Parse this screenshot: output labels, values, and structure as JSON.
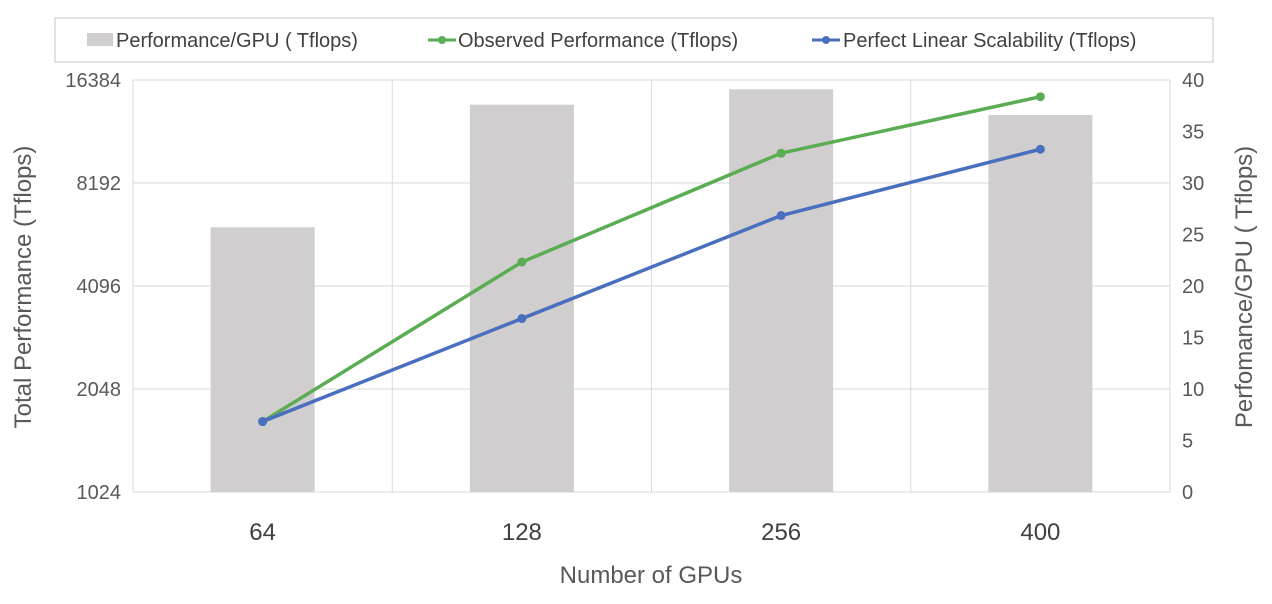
{
  "chart_data": {
    "type": "bar+line",
    "categories": [
      "64",
      "128",
      "256",
      "400"
    ],
    "xlabel": "Number of GPUs",
    "ylabel_left": "Total Performance (Tflops)",
    "ylabel_right": "Perfomance/GPU ( Tflops)",
    "left_axis": {
      "scale": "log2",
      "ticks": [
        1024,
        2048,
        4096,
        8192,
        16384
      ],
      "ylim": [
        1024,
        16384
      ]
    },
    "right_axis": {
      "scale": "linear",
      "ticks": [
        0,
        5,
        10,
        15,
        20,
        25,
        30,
        35,
        40
      ],
      "ylim": [
        0,
        40
      ]
    },
    "series": [
      {
        "name": "Performance/GPU ( Tflops)",
        "type": "bar",
        "axis": "right",
        "color": "#d0cece",
        "values": [
          25.7,
          37.6,
          39.1,
          36.6
        ]
      },
      {
        "name": "Observed Performance (Tflops)",
        "type": "line",
        "axis": "left",
        "color": "#5aad52",
        "values": [
          1645,
          4812,
          10010,
          14640
        ]
      },
      {
        "name": "Perfect Linear Scalability (Tflops)",
        "type": "line",
        "axis": "left",
        "color": "#4a6fbf",
        "values": [
          1645,
          3290,
          6580,
          10281
        ]
      }
    ],
    "legend_position": "top",
    "grid": true
  }
}
